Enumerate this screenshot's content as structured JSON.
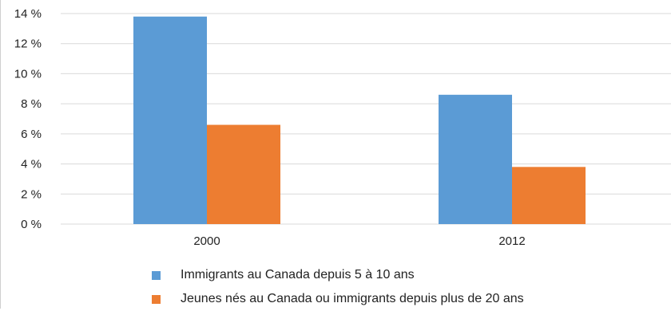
{
  "chart_data": {
    "type": "bar",
    "categories": [
      "2000",
      "2012"
    ],
    "series": [
      {
        "name": "Immigrants au Canada depuis 5 à 10 ans",
        "values": [
          13.8,
          8.6
        ],
        "color": "#5b9bd5"
      },
      {
        "name": "Jeunes nés au Canada ou immigrants depuis plus de 20 ans",
        "values": [
          6.6,
          3.8
        ],
        "color": "#ed7d31"
      }
    ],
    "ylim": [
      0,
      14
    ],
    "yticks": [
      0,
      2,
      4,
      6,
      8,
      10,
      12,
      14
    ],
    "ytick_labels": [
      "0 %",
      "2 %",
      "4 %",
      "6 %",
      "8 %",
      "10 %",
      "12 %",
      "14 %"
    ],
    "title": "",
    "xlabel": "",
    "ylabel": "",
    "grid": true,
    "legend_position": "bottom"
  }
}
